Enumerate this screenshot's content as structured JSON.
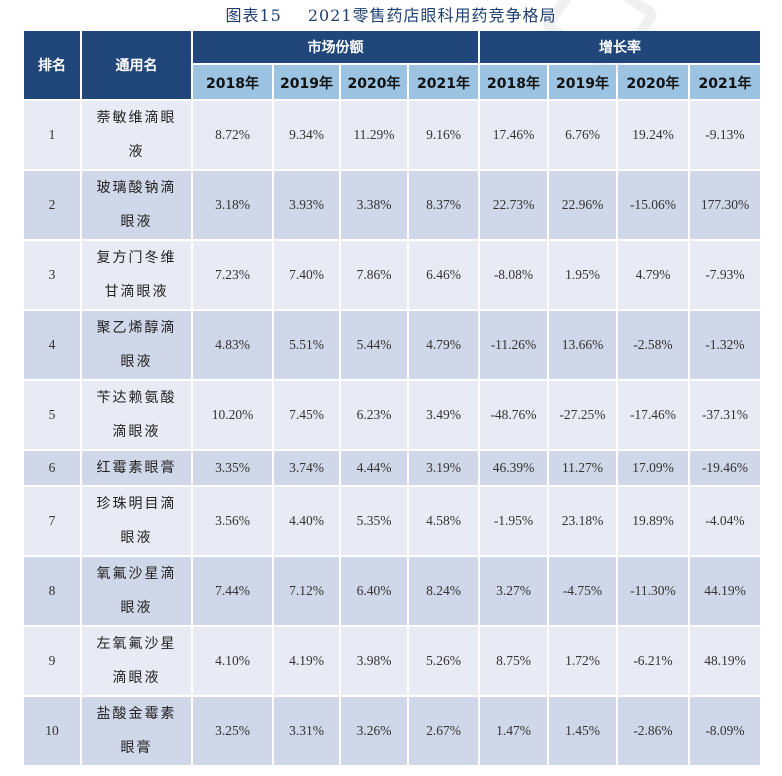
{
  "title": {
    "figure_no": "图表15",
    "text": "2021零售药店眼科用药竞争格局"
  },
  "header": {
    "rank": "排名",
    "name": "通用名",
    "group_share": "市场份额",
    "group_growth": "增长率",
    "years": [
      "2018年",
      "2019年",
      "2020年",
      "2021年"
    ]
  },
  "rows": [
    {
      "rank": "1",
      "name": [
        "萘敏维滴眼",
        "液"
      ],
      "share": [
        "8.72%",
        "9.34%",
        "11.29%",
        "9.16%"
      ],
      "growth": [
        "17.46%",
        "6.76%",
        "19.24%",
        "-9.13%"
      ]
    },
    {
      "rank": "2",
      "name": [
        "玻璃酸钠滴",
        "眼液"
      ],
      "share": [
        "3.18%",
        "3.93%",
        "3.38%",
        "8.37%"
      ],
      "growth": [
        "22.73%",
        "22.96%",
        "-15.06%",
        "177.30%"
      ]
    },
    {
      "rank": "3",
      "name": [
        "复方门冬维",
        "甘滴眼液"
      ],
      "share": [
        "7.23%",
        "7.40%",
        "7.86%",
        "6.46%"
      ],
      "growth": [
        "-8.08%",
        "1.95%",
        "4.79%",
        "-7.93%"
      ]
    },
    {
      "rank": "4",
      "name": [
        "聚乙烯醇滴",
        "眼液"
      ],
      "share": [
        "4.83%",
        "5.51%",
        "5.44%",
        "4.79%"
      ],
      "growth": [
        "-11.26%",
        "13.66%",
        "-2.58%",
        "-1.32%"
      ]
    },
    {
      "rank": "5",
      "name": [
        "苄达赖氨酸",
        "滴眼液"
      ],
      "share": [
        "10.20%",
        "7.45%",
        "6.23%",
        "3.49%"
      ],
      "growth": [
        "-48.76%",
        "-27.25%",
        "-17.46%",
        "-37.31%"
      ]
    },
    {
      "rank": "6",
      "name": [
        "红霉素眼膏",
        ""
      ],
      "share": [
        "3.35%",
        "3.74%",
        "4.44%",
        "3.19%"
      ],
      "growth": [
        "46.39%",
        "11.27%",
        "17.09%",
        "-19.46%"
      ]
    },
    {
      "rank": "7",
      "name": [
        "珍珠明目滴",
        "眼液"
      ],
      "share": [
        "3.56%",
        "4.40%",
        "5.35%",
        "4.58%"
      ],
      "growth": [
        "-1.95%",
        "23.18%",
        "19.89%",
        "-4.04%"
      ]
    },
    {
      "rank": "8",
      "name": [
        "氧氟沙星滴",
        "眼液"
      ],
      "share": [
        "7.44%",
        "7.12%",
        "6.40%",
        "8.24%"
      ],
      "growth": [
        "3.27%",
        "-4.75%",
        "-11.30%",
        "44.19%"
      ]
    },
    {
      "rank": "9",
      "name": [
        "左氧氟沙星",
        "滴眼液"
      ],
      "share": [
        "4.10%",
        "4.19%",
        "3.98%",
        "5.26%"
      ],
      "growth": [
        "8.75%",
        "1.72%",
        "-6.21%",
        "48.19%"
      ]
    },
    {
      "rank": "10",
      "name": [
        "盐酸金霉素",
        "眼膏"
      ],
      "share": [
        "3.25%",
        "3.31%",
        "3.26%",
        "2.67%"
      ],
      "growth": [
        "1.47%",
        "1.45%",
        "-2.86%",
        "-8.09%"
      ]
    }
  ],
  "colors": {
    "header_dark": "#20467a",
    "header_light": "#9dc3e2",
    "row_odd": "#e8ebf4",
    "row_even": "#cfd7e8",
    "title": "#1f3f70"
  }
}
